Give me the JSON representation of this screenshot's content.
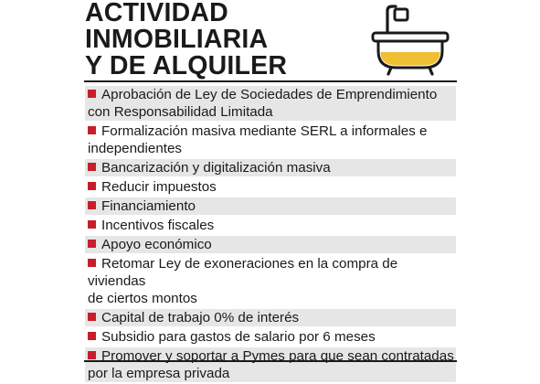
{
  "title_lines": [
    "ACTIVIDAD",
    "INMOBILIARIA",
    "Y DE ALQUILER"
  ],
  "icon": "bathtub-icon",
  "colors": {
    "bullet": "#c61f2b",
    "tub_fill": "#f0bf34",
    "shade": "#e6e6e6"
  },
  "items": [
    {
      "line1": "Aprobación de Ley de Sociedades de Emprendimiento",
      "line2": "con Responsabilidad Limitada"
    },
    {
      "line1": "Formalización masiva mediante SERL a informales e",
      "line2": "independientes"
    },
    {
      "line1": "Bancarización y digitalización masiva"
    },
    {
      "line1": "Reducir impuestos"
    },
    {
      "line1": "Financiamiento"
    },
    {
      "line1": "Incentivos fiscales"
    },
    {
      "line1": "Apoyo económico"
    },
    {
      "line1": "Retomar Ley de exoneraciones en la compra de viviendas",
      "line2": "de ciertos montos"
    },
    {
      "line1": "Capital de trabajo 0% de interés"
    },
    {
      "line1": "Subsidio para gastos de salario por 6 meses"
    },
    {
      "line1": "Promover y soportar a Pymes para que sean contratadas",
      "line2": "por la empresa privada"
    }
  ]
}
